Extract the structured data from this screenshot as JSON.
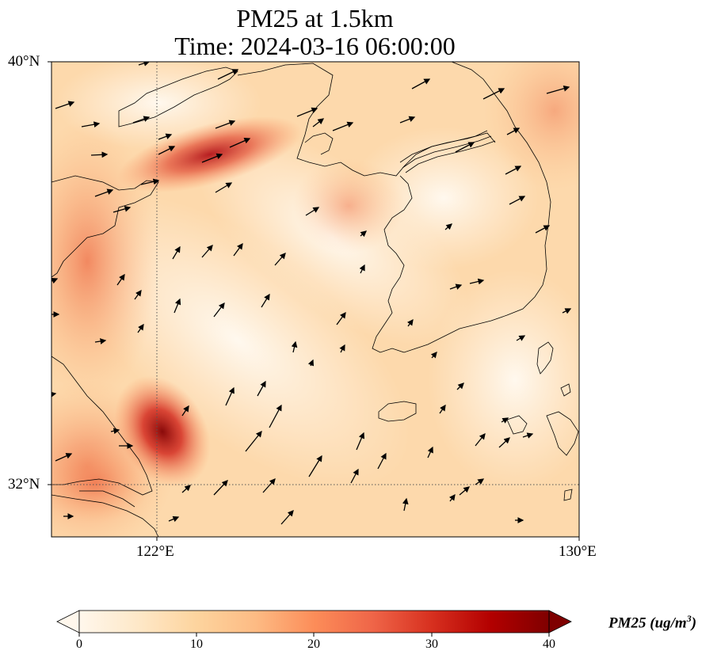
{
  "title": {
    "line1": "PM25 at 1.5km",
    "line2": "Time: 2024-03-16 06:00:00"
  },
  "map": {
    "lat_labels": [
      "40°N",
      "32°N"
    ],
    "lon_labels": [
      "122°E",
      "130°E"
    ],
    "lon_range": [
      120.0,
      130.0
    ],
    "lat_range": [
      31.0,
      40.0
    ],
    "gridlines": {
      "lon": [
        122.0
      ],
      "lat": [
        32.0
      ]
    }
  },
  "colorbar": {
    "label": "PM25 (ug/m",
    "label_sup": "3",
    "label_close": ")",
    "ticks": [
      "0",
      "10",
      "20",
      "30",
      "40"
    ],
    "range": [
      0,
      40
    ],
    "colormap": "OrRd-like",
    "extend": "both",
    "colors": [
      "#fff7ec",
      "#fee8c8",
      "#fdd49e",
      "#fdbb84",
      "#fc8d59",
      "#ef6548",
      "#d7301f",
      "#b30000",
      "#7f0000"
    ]
  }
}
